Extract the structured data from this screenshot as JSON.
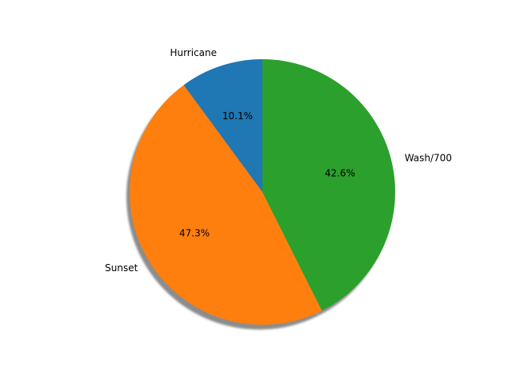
{
  "chart_data": {
    "type": "pie",
    "title": "",
    "categories": [
      "Hurricane",
      "Sunset",
      "Wash/700"
    ],
    "values": [
      10.1,
      47.3,
      42.6
    ],
    "percent_labels": [
      "10.1%",
      "47.3%",
      "42.6%"
    ],
    "colors": [
      "#1f77b4",
      "#ff7f0e",
      "#2ca02c"
    ],
    "start_angle_deg": 90,
    "direction": "counterclockwise",
    "shadow": true,
    "legend": "none"
  }
}
